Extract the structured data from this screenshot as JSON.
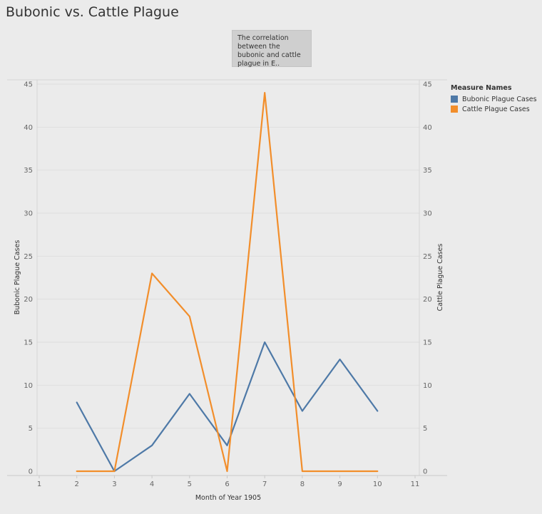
{
  "title": "Bubonic vs. Cattle Plague",
  "tooltip": {
    "text": "The correlation between the bubonic and cattle plague in E.."
  },
  "legend": {
    "title": "Measure Names",
    "items": [
      {
        "label": "Bubonic Plague Cases",
        "color": "#4e79a7"
      },
      {
        "label": "Cattle Plague Cases",
        "color": "#f28e2b"
      }
    ]
  },
  "chart_data": {
    "type": "line",
    "title": "Bubonic vs. Cattle Plague",
    "xlabel": "Month of Year 1905",
    "ylabel": "Bubonic Plague Cases",
    "y2label": "Cattle Plague Cases",
    "xlim": [
      1,
      11
    ],
    "ylim": [
      0,
      45
    ],
    "x_ticks": [
      1,
      2,
      3,
      4,
      5,
      6,
      7,
      8,
      9,
      10,
      11
    ],
    "y_ticks": [
      0,
      5,
      10,
      15,
      20,
      25,
      30,
      35,
      40,
      45
    ],
    "grid": true,
    "legend_position": "top-right",
    "series": [
      {
        "name": "Bubonic Plague Cases",
        "axis": "left",
        "color": "#4e79a7",
        "x": [
          2,
          3,
          4,
          5,
          6,
          7,
          8,
          9,
          10
        ],
        "y": [
          8,
          0,
          3,
          9,
          3,
          15,
          7,
          13,
          7
        ]
      },
      {
        "name": "Cattle Plague Cases",
        "axis": "right",
        "color": "#f28e2b",
        "x": [
          2,
          3,
          4,
          5,
          6,
          7,
          8,
          9,
          10
        ],
        "y": [
          0,
          0,
          23,
          18,
          0,
          44,
          0,
          0,
          0
        ]
      }
    ]
  }
}
